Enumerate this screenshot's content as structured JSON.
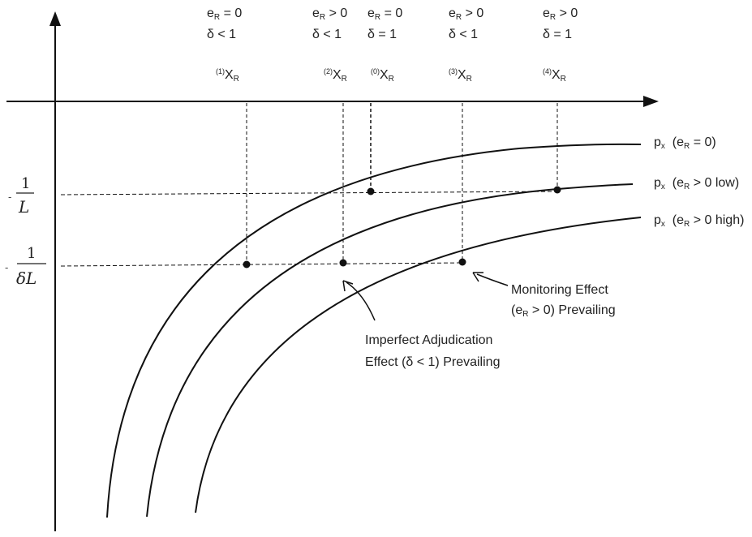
{
  "header_conditions": [
    {
      "er_base": "e",
      "er_sub": "R",
      "er_rest": " = 0",
      "delta": "δ < 1"
    },
    {
      "er_base": "e",
      "er_sub": "R",
      "er_rest": " > 0",
      "delta": "δ < 1"
    },
    {
      "er_base": "e",
      "er_sub": "R",
      "er_rest": " = 0",
      "delta": "δ = 1"
    },
    {
      "er_base": "e",
      "er_sub": "R",
      "er_rest": " > 0",
      "delta": "δ < 1"
    },
    {
      "er_base": "e",
      "er_sub": "R",
      "er_rest": " > 0",
      "delta": "δ = 1"
    }
  ],
  "x_markers": [
    {
      "sup": "(1)",
      "base": "X",
      "sub": "R"
    },
    {
      "sup": "(2)",
      "base": "X",
      "sub": "R"
    },
    {
      "sup": "(0)",
      "base": "X",
      "sub": "R"
    },
    {
      "sup": "(3)",
      "base": "X",
      "sub": "R"
    },
    {
      "sup": "(4)",
      "base": "X",
      "sub": "R"
    }
  ],
  "y_labels": {
    "upper": {
      "sign": "-",
      "numerator": "1",
      "denominator": "L"
    },
    "lower": {
      "sign": "-",
      "numerator": "1",
      "denominator": "δL"
    }
  },
  "curves": [
    {
      "p": "p",
      "p_sub": "x",
      "open": "  (e",
      "e_sub": "R",
      "rest": " = 0)"
    },
    {
      "p": "p",
      "p_sub": "x",
      "open": "  (e",
      "e_sub": "R",
      "rest": " > 0 low)"
    },
    {
      "p": "p",
      "p_sub": "x",
      "open": "  (e",
      "e_sub": "R",
      "rest": " > 0 high)"
    }
  ],
  "annotations": {
    "monitoring_line1": "Monitoring Effect",
    "monitoring_line2_open": "(e",
    "monitoring_line2_sub": "R",
    "monitoring_line2_rest": " > 0) Prevailing",
    "imperfect_line1": "Imperfect Adjudication",
    "imperfect_line2": "Effect (δ < 1) Prevailing"
  }
}
